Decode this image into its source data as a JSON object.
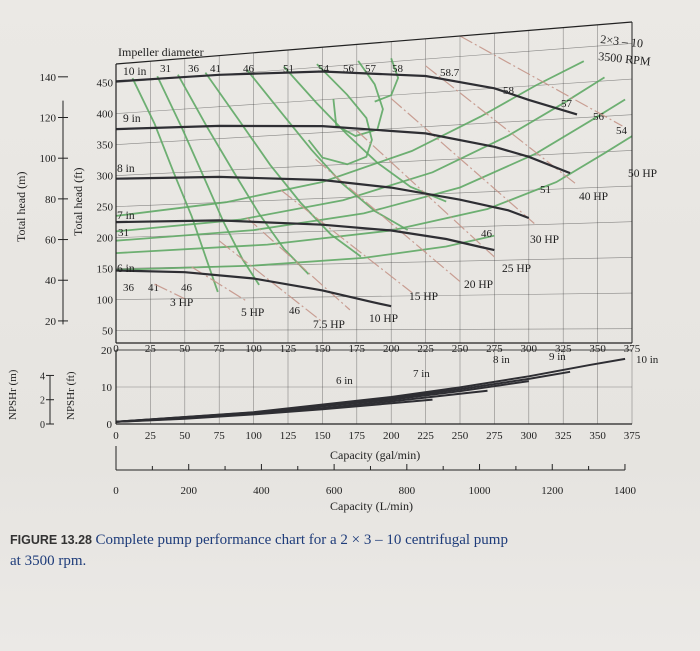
{
  "caption": {
    "figure_label": "FIGURE 13.28",
    "text": "Complete pump performance chart for a 2 × 3 – 10 centrifugal pump",
    "text_cont": "at 3500 rpm."
  },
  "chart_data": {
    "type": "line",
    "title": "2×3 – 10",
    "subtitle": "3500 RPM",
    "impeller_label": "Impeller diameter",
    "head_axis_m": {
      "label": "Total head (m)",
      "ticks": [
        "20",
        "40",
        "60",
        "80",
        "100",
        "120",
        "140"
      ],
      "values": [
        20,
        40,
        60,
        80,
        100,
        120,
        140
      ]
    },
    "head_axis_ft": {
      "label": "Total head (ft)",
      "ticks": [
        "50",
        "100",
        "150",
        "200",
        "250",
        "300",
        "350",
        "400",
        "450"
      ],
      "values": [
        50,
        100,
        150,
        200,
        250,
        300,
        350,
        400,
        450
      ]
    },
    "npsh_axis_m": {
      "label": "NPSHr (m)",
      "ticks": [
        "0",
        "2",
        "4"
      ],
      "values": [
        0,
        2,
        4
      ]
    },
    "npsh_axis_ft": {
      "label": "NPSHr (ft)",
      "ticks": [
        "0",
        "10",
        "20"
      ],
      "values": [
        0,
        10,
        20
      ]
    },
    "capacity_gpm": {
      "label": "Capacity (gal/min)",
      "ticks": [
        "0",
        "25",
        "50",
        "75",
        "100",
        "125",
        "150",
        "175",
        "200",
        "225",
        "250",
        "275",
        "300",
        "325",
        "350",
        "375"
      ],
      "values": [
        0,
        25,
        50,
        75,
        100,
        125,
        150,
        175,
        200,
        225,
        250,
        275,
        300,
        325,
        350,
        375
      ]
    },
    "capacity_lpm": {
      "label": "Capacity (L/min)",
      "ticks": [
        "0",
        "200",
        "400",
        "600",
        "800",
        "1000",
        "1200",
        "1400"
      ],
      "values": [
        0,
        200,
        400,
        600,
        800,
        1000,
        1200,
        1400
      ]
    },
    "xlim_gpm": [
      0,
      375
    ],
    "ylim_head_ft": [
      30,
      480
    ],
    "ylim_npsh_ft": [
      0,
      20
    ],
    "head_curves": [
      {
        "name": "10 in",
        "x": [
          0,
          75,
          150,
          225,
          275,
          300,
          335
        ],
        "y": [
          452,
          450,
          443,
          425,
          400,
          380,
          355
        ]
      },
      {
        "name": "9 in",
        "x": [
          0,
          75,
          150,
          225,
          275,
          300,
          330
        ],
        "y": [
          375,
          370,
          360,
          340,
          315,
          298,
          272
        ]
      },
      {
        "name": "8 in",
        "x": [
          0,
          75,
          150,
          200,
          250,
          285,
          300
        ],
        "y": [
          295,
          290,
          278,
          262,
          240,
          222,
          210
        ]
      },
      {
        "name": "7 in",
        "x": [
          0,
          75,
          150,
          200,
          240,
          265,
          275
        ],
        "y": [
          225,
          222,
          210,
          198,
          183,
          170,
          165
        ]
      },
      {
        "name": "6 in",
        "x": [
          0,
          50,
          100,
          150,
          185,
          200
        ],
        "y": [
          147,
          142,
          130,
          110,
          92,
          85
        ]
      }
    ],
    "efficiency_labels": [
      "31",
      "36",
      "41",
      "46",
      "51",
      "54",
      "56",
      "57",
      "58",
      "58.7"
    ],
    "efficiency_labels_right": [
      "58",
      "57",
      "56",
      "54",
      "51",
      "46"
    ],
    "efficiency_labels_low": [
      "31",
      "36",
      "41",
      "46",
      "46"
    ],
    "power_lines": [
      {
        "name": "3 HP",
        "x": [
          28,
          50
        ],
        "y": [
          124,
          100
        ]
      },
      {
        "name": "5 HP",
        "x": [
          55,
          95
        ],
        "y": [
          150,
          95
        ]
      },
      {
        "name": "7.5 HP",
        "x": [
          75,
          150
        ],
        "y": [
          190,
          62
        ]
      },
      {
        "name": "10 HP",
        "x": [
          95,
          170
        ],
        "y": [
          225,
          80
        ]
      },
      {
        "name": "15 HP",
        "x": [
          120,
          215
        ],
        "y": [
          265,
          105
        ]
      },
      {
        "name": "20 HP",
        "x": [
          145,
          250
        ],
        "y": [
          310,
          120
        ]
      },
      {
        "name": "25 HP",
        "x": [
          175,
          275
        ],
        "y": [
          350,
          155
        ]
      },
      {
        "name": "30 HP",
        "x": [
          200,
          305
        ],
        "y": [
          395,
          200
        ]
      },
      {
        "name": "40 HP",
        "x": [
          225,
          335
        ],
        "y": [
          440,
          255
        ]
      },
      {
        "name": "50 HP",
        "x": [
          250,
          368
        ],
        "y": [
          480,
          335
        ]
      }
    ],
    "npsh_curves": [
      {
        "name": "6 in",
        "x": [
          0,
          50,
          100,
          150,
          200,
          230
        ],
        "y": [
          0.6,
          1.4,
          2.6,
          4.0,
          5.6,
          6.6
        ]
      },
      {
        "name": "7 in",
        "x": [
          0,
          50,
          100,
          150,
          200,
          250,
          270
        ],
        "y": [
          0.6,
          1.5,
          2.8,
          4.3,
          6.1,
          8.2,
          9.0
        ]
      },
      {
        "name": "8 in",
        "x": [
          0,
          100,
          200,
          250,
          280,
          300
        ],
        "y": [
          0.6,
          3.0,
          6.6,
          8.9,
          10.5,
          11.6
        ]
      },
      {
        "name": "9 in",
        "x": [
          0,
          100,
          200,
          250,
          300,
          330
        ],
        "y": [
          0.6,
          3.1,
          7.0,
          9.4,
          12.2,
          14.1
        ]
      },
      {
        "name": "10 in",
        "x": [
          0,
          100,
          200,
          250,
          300,
          345,
          370
        ],
        "y": [
          0.6,
          3.2,
          7.3,
          9.9,
          12.9,
          16.0,
          17.6
        ]
      }
    ],
    "grid": true,
    "colors": {
      "head_curve": "#2e2e33",
      "efficiency": "#5fa865",
      "power": "#c5968a",
      "grid": "#3a3a3a"
    }
  }
}
